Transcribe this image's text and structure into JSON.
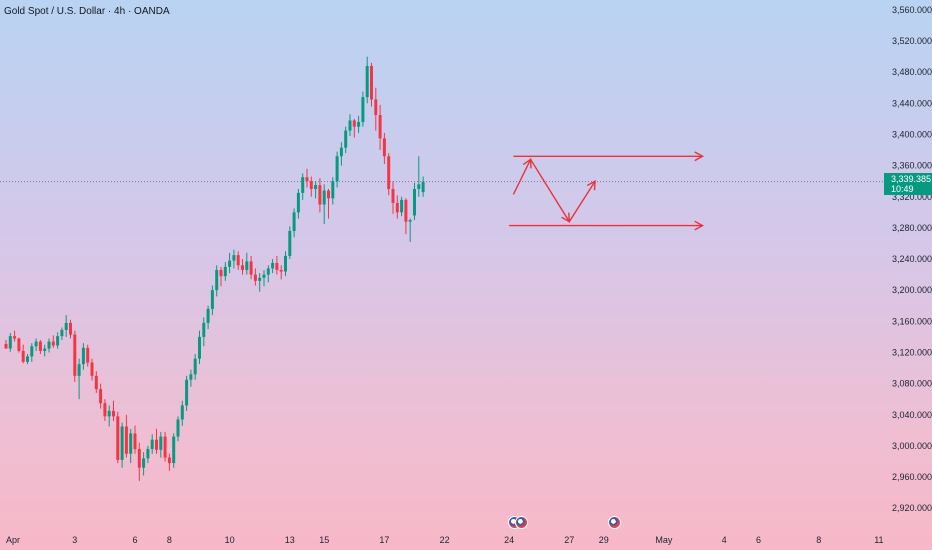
{
  "header": {
    "title": "Gold Spot / U.S. Dollar · 4h · OANDA"
  },
  "price_label": {
    "price": "3,339.385",
    "countdown": "10:49"
  },
  "colors": {
    "up": "#089981",
    "down": "#f23645",
    "annotation": "#e8333f",
    "price_line": "#787b86"
  },
  "chart_data": {
    "type": "candlestick",
    "y_axis": {
      "range": [
        2910,
        3565
      ],
      "ticks": [
        2920,
        2960,
        3000,
        3040,
        3080,
        3120,
        3160,
        3200,
        3240,
        3280,
        3320,
        3360,
        3400,
        3440,
        3480,
        3520,
        3560
      ],
      "tick_labels": [
        "2,920.000",
        "2,960.000",
        "3,000.000",
        "3,040.000",
        "3,080.000",
        "3,120.000",
        "3,160.000",
        "3,200.000",
        "3,240.000",
        "3,280.000",
        "3,320.000",
        "3,360.000",
        "3,400.000",
        "3,440.000",
        "3,480.000",
        "3,520.000",
        "3,560.000"
      ]
    },
    "x_axis": {
      "labels": [
        "Apr",
        "3",
        "6",
        "8",
        "10",
        "13",
        "15",
        "17",
        "22",
        "24",
        "27",
        "29",
        "May",
        "4",
        "6",
        "8",
        "11"
      ],
      "label_bars": [
        0,
        16,
        30,
        38,
        52,
        66,
        74,
        88,
        102,
        117,
        131,
        139,
        153,
        167,
        175,
        189,
        203
      ]
    },
    "last_price": 3339.385,
    "candles": [
      [
        3131,
        3136,
        3127,
        3125
      ],
      [
        3125,
        3145,
        3121,
        3141
      ],
      [
        3141,
        3148,
        3134,
        3138
      ],
      [
        3138,
        3139,
        3120,
        3122
      ],
      [
        3122,
        3130,
        3106,
        3108
      ],
      [
        3108,
        3118,
        3105,
        3115
      ],
      [
        3115,
        3132,
        3108,
        3128
      ],
      [
        3128,
        3138,
        3122,
        3134
      ],
      [
        3134,
        3136,
        3118,
        3122
      ],
      [
        3122,
        3130,
        3115,
        3125
      ],
      [
        3125,
        3138,
        3120,
        3134
      ],
      [
        3134,
        3142,
        3126,
        3129
      ],
      [
        3129,
        3146,
        3125,
        3141
      ],
      [
        3141,
        3152,
        3136,
        3149
      ],
      [
        3149,
        3168,
        3140,
        3158
      ],
      [
        3158,
        3162,
        3138,
        3143
      ],
      [
        3143,
        3148,
        3082,
        3090
      ],
      [
        3090,
        3112,
        3060,
        3105
      ],
      [
        3105,
        3132,
        3098,
        3126
      ],
      [
        3126,
        3130,
        3102,
        3107
      ],
      [
        3107,
        3112,
        3084,
        3090
      ],
      [
        3090,
        3096,
        3068,
        3073
      ],
      [
        3073,
        3080,
        3048,
        3055
      ],
      [
        3055,
        3060,
        3032,
        3038
      ],
      [
        3038,
        3052,
        3025,
        3045
      ],
      [
        3045,
        3058,
        3032,
        3038
      ],
      [
        3038,
        3044,
        2978,
        2982
      ],
      [
        2982,
        3030,
        2972,
        3025
      ],
      [
        3025,
        3040,
        2985,
        2990
      ],
      [
        2990,
        3022,
        2978,
        3016
      ],
      [
        3016,
        3026,
        2990,
        2996
      ],
      [
        2996,
        3004,
        2955,
        2972
      ],
      [
        2972,
        2992,
        2962,
        2984
      ],
      [
        2984,
        3000,
        2978,
        2996
      ],
      [
        2996,
        3015,
        2990,
        3008
      ],
      [
        3008,
        3022,
        2990,
        2995
      ],
      [
        2995,
        3018,
        2985,
        3012
      ],
      [
        3012,
        3018,
        2980,
        2985
      ],
      [
        2985,
        2990,
        2968,
        2978
      ],
      [
        2978,
        3016,
        2972,
        3012
      ],
      [
        3012,
        3038,
        3006,
        3034
      ],
      [
        3034,
        3058,
        3026,
        3052
      ],
      [
        3052,
        3090,
        3045,
        3085
      ],
      [
        3085,
        3098,
        3076,
        3092
      ],
      [
        3092,
        3118,
        3085,
        3112
      ],
      [
        3112,
        3148,
        3105,
        3140
      ],
      [
        3140,
        3165,
        3128,
        3158
      ],
      [
        3158,
        3180,
        3150,
        3176
      ],
      [
        3176,
        3206,
        3168,
        3200
      ],
      [
        3200,
        3232,
        3192,
        3226
      ],
      [
        3226,
        3230,
        3205,
        3218
      ],
      [
        3218,
        3236,
        3212,
        3230
      ],
      [
        3230,
        3248,
        3222,
        3238
      ],
      [
        3238,
        3252,
        3228,
        3245
      ],
      [
        3245,
        3250,
        3226,
        3232
      ],
      [
        3232,
        3240,
        3220,
        3226
      ],
      [
        3226,
        3248,
        3220,
        3237
      ],
      [
        3237,
        3244,
        3214,
        3220
      ],
      [
        3220,
        3228,
        3206,
        3212
      ],
      [
        3212,
        3222,
        3198,
        3216
      ],
      [
        3216,
        3226,
        3205,
        3220
      ],
      [
        3220,
        3232,
        3210,
        3228
      ],
      [
        3228,
        3240,
        3222,
        3235
      ],
      [
        3235,
        3244,
        3220,
        3226
      ],
      [
        3226,
        3232,
        3214,
        3224
      ],
      [
        3224,
        3250,
        3218,
        3244
      ],
      [
        3244,
        3282,
        3240,
        3276
      ],
      [
        3276,
        3305,
        3268,
        3300
      ],
      [
        3300,
        3330,
        3292,
        3325
      ],
      [
        3325,
        3350,
        3316,
        3345
      ],
      [
        3345,
        3356,
        3332,
        3340
      ],
      [
        3340,
        3346,
        3320,
        3330
      ],
      [
        3330,
        3340,
        3318,
        3335
      ],
      [
        3335,
        3344,
        3300,
        3310
      ],
      [
        3310,
        3336,
        3285,
        3328
      ],
      [
        3328,
        3330,
        3292,
        3318
      ],
      [
        3318,
        3345,
        3310,
        3340
      ],
      [
        3340,
        3378,
        3332,
        3372
      ],
      [
        3372,
        3390,
        3360,
        3383
      ],
      [
        3383,
        3410,
        3376,
        3405
      ],
      [
        3405,
        3426,
        3398,
        3418
      ],
      [
        3418,
        3420,
        3396,
        3410
      ],
      [
        3410,
        3424,
        3402,
        3416
      ],
      [
        3416,
        3455,
        3410,
        3448
      ],
      [
        3448,
        3500,
        3440,
        3488
      ],
      [
        3488,
        3492,
        3436,
        3445
      ],
      [
        3445,
        3460,
        3405,
        3425
      ],
      [
        3425,
        3438,
        3380,
        3395
      ],
      [
        3395,
        3402,
        3362,
        3372
      ],
      [
        3372,
        3376,
        3322,
        3330
      ],
      [
        3330,
        3340,
        3298,
        3312
      ],
      [
        3312,
        3322,
        3292,
        3300
      ],
      [
        3300,
        3320,
        3295,
        3316
      ],
      [
        3316,
        3318,
        3272,
        3288
      ],
      [
        3288,
        3292,
        3262,
        3290
      ],
      [
        3296,
        3338,
        3290,
        3330
      ],
      [
        3330,
        3372,
        3320,
        3336
      ],
      [
        3326,
        3346,
        3320,
        3339.385
      ]
    ],
    "annotations": {
      "lines": [
        {
          "from": [
            118,
            3372
          ],
          "to": [
            162,
            3372
          ],
          "arrow": true
        },
        {
          "from": [
            117,
            3283
          ],
          "to": [
            162,
            3283
          ],
          "arrow": true
        }
      ],
      "path": [
        [
          118,
          3323
        ],
        [
          122,
          3368
        ],
        [
          131,
          3288
        ],
        [
          137,
          3340
        ]
      ]
    }
  }
}
